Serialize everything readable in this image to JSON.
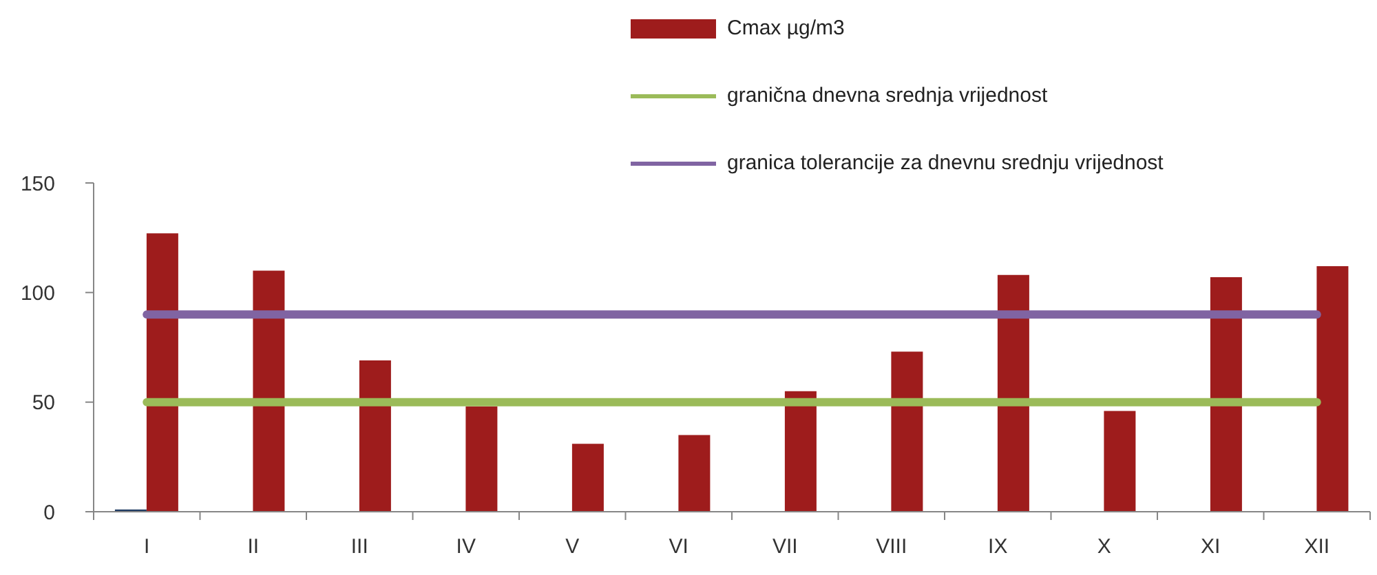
{
  "chart_data": {
    "type": "bar",
    "categories": [
      "I",
      "II",
      "III",
      "IV",
      "V",
      "VI",
      "VII",
      "VIII",
      "IX",
      "X",
      "XI",
      "XII"
    ],
    "ylim": [
      0,
      150
    ],
    "yticks": [
      0,
      50,
      100,
      150
    ],
    "grid": false,
    "legend": "top right",
    "marker": "none",
    "series": [
      {
        "color": "#1f3b63",
        "values": [
          1,
          null,
          null,
          null,
          null,
          null,
          null,
          null,
          null,
          null,
          null,
          null
        ]
      },
      {
        "name": "Cmax µg/m3",
        "color": "#9e1c1c",
        "values": [
          127,
          110,
          69,
          48,
          31,
          35,
          55,
          73,
          108,
          46,
          107,
          112
        ]
      },
      {
        "type": "line",
        "name": "granična dnevna srednja vrijednost",
        "color": "#9bbb59",
        "values": [
          50,
          50,
          50,
          50,
          50,
          50,
          50,
          50,
          50,
          50,
          50,
          50
        ]
      },
      {
        "type": "line",
        "name": "granica tolerancije za dnevnu srednju vrijednost",
        "color": "#8064a2",
        "values": [
          90,
          90,
          90,
          90,
          90,
          90,
          90,
          90,
          90,
          90,
          90,
          90
        ]
      }
    ]
  }
}
